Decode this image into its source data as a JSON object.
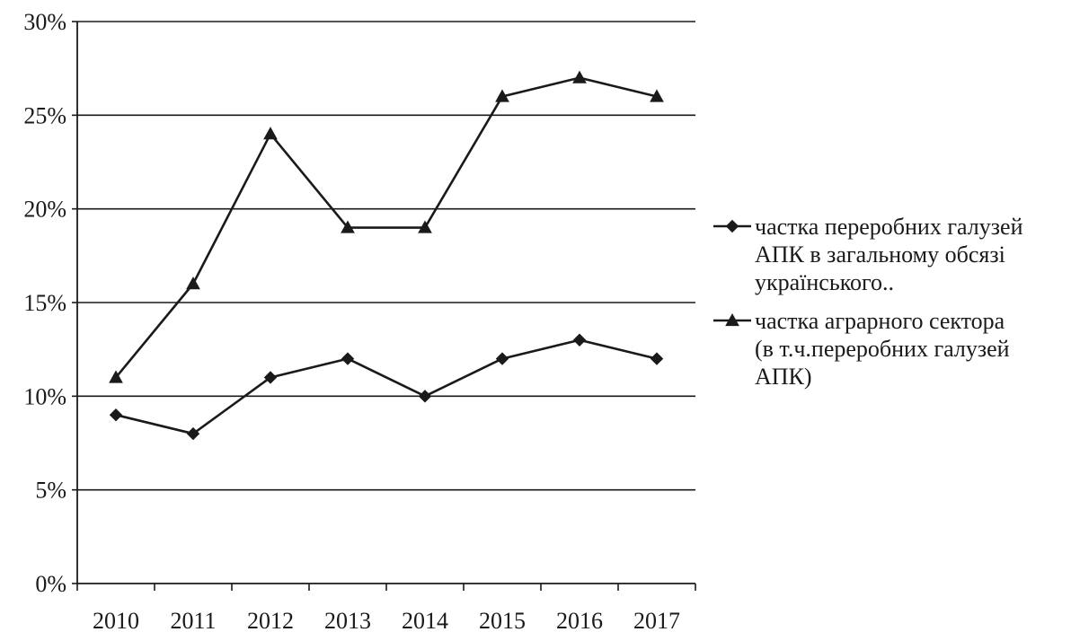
{
  "chart_data": {
    "type": "line",
    "title": "",
    "xlabel": "",
    "ylabel": "",
    "categories": [
      "2010",
      "2011",
      "2012",
      "2013",
      "2014",
      "2015",
      "2016",
      "2017"
    ],
    "ylim": [
      0,
      0.3
    ],
    "y_ticks": [
      0,
      0.05,
      0.1,
      0.15,
      0.2,
      0.25,
      0.3
    ],
    "y_tick_labels": [
      "0%",
      "5%",
      "10%",
      "15%",
      "20%",
      "25%",
      "30%"
    ],
    "grid": true,
    "legend_position": "right",
    "series": [
      {
        "name": "частка переробних галузей АПК в загальному обсязі українського..",
        "legend_lines": [
          "частка переробних галузей",
          "АПК в загальному обсязі",
          "українського.."
        ],
        "marker": "diamond",
        "values": [
          0.09,
          0.08,
          0.11,
          0.12,
          0.1,
          0.12,
          0.13,
          0.12
        ]
      },
      {
        "name": "частка аграрного сектора (в т.ч.переробних галузей АПК)",
        "legend_lines": [
          "частка аграрного сектора",
          "(в т.ч.переробних галузей",
          "АПК)"
        ],
        "marker": "triangle",
        "values": [
          0.11,
          0.16,
          0.24,
          0.19,
          0.19,
          0.26,
          0.27,
          0.26
        ]
      }
    ],
    "colors": {
      "line": "#1a1a1a",
      "grid": "#1a1a1a",
      "axis": "#1a1a1a",
      "background": "#ffffff"
    }
  }
}
